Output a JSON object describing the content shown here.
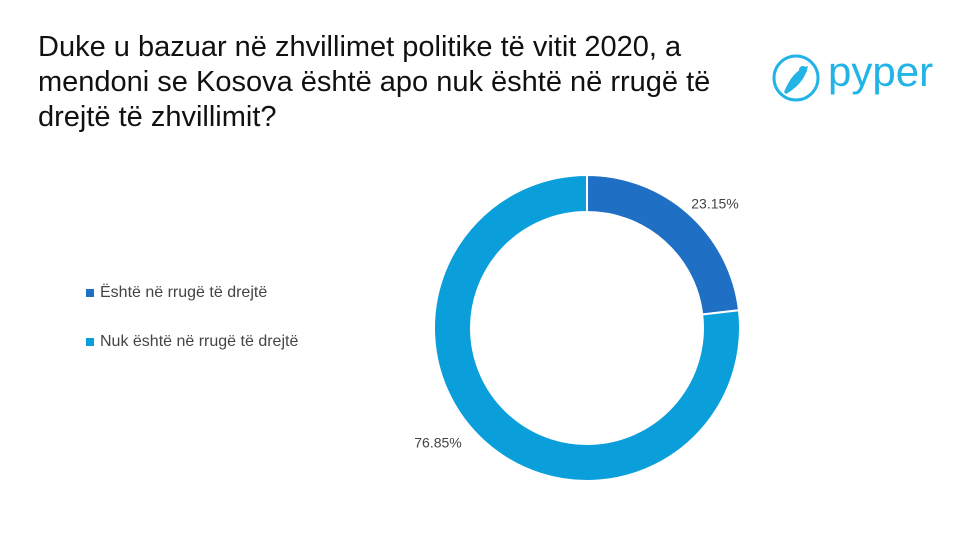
{
  "logo": "pyper",
  "chart_data": {
    "type": "donut",
    "title": "Duke u bazuar në zhvillimet politike të vitit 2020, a mendoni se Kosova është apo nuk është në rrugë të drejtë të zhvillimit?",
    "categories": [
      "Është në rrugë të drejtë",
      "Nuk është në rrugë të drejtë"
    ],
    "values": [
      23.15,
      76.85
    ],
    "value_labels": [
      "23.15%",
      "76.85%"
    ],
    "colors": [
      "#1f6fc5",
      "#0a9fdb"
    ],
    "legend": "left"
  }
}
